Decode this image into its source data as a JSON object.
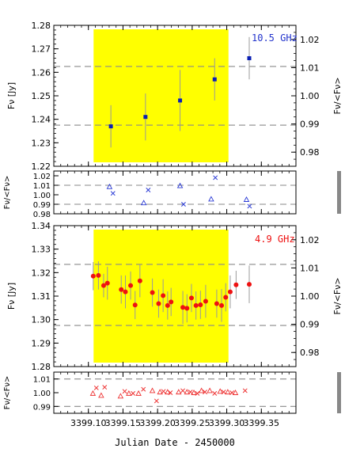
{
  "chart_data": [
    {
      "id": "panel-10ghz",
      "type": "scatter",
      "annotation": "10.5 GHz",
      "ylabel_left": "Fν [Jy]",
      "ylabel_right": "Fν/<Fν>",
      "x": [
        3399.1325,
        3399.1825,
        3399.2325,
        3399.2825,
        3399.3325
      ],
      "y": [
        1.237,
        1.241,
        1.248,
        1.257,
        1.266
      ],
      "yerr": [
        0.009,
        0.01,
        0.013,
        0.009,
        0.009
      ],
      "xlim": [
        3399.05,
        3399.4
      ],
      "ylim": [
        1.22,
        1.28
      ],
      "yticks": [
        "1.22",
        "1.23",
        "1.24",
        "1.25",
        "1.26",
        "1.27",
        "1.28"
      ],
      "ylim_right": [
        0.975,
        1.025
      ],
      "yticks_right": [
        "0.98",
        "0.99",
        "1.00",
        "1.01",
        "1.02"
      ],
      "dashed_levels": [
        1.2375,
        1.2625
      ],
      "highlight_x": [
        3399.1075,
        3399.3025
      ],
      "marker_color": "#0a1fb4",
      "highlight_color": "#ffff00"
    },
    {
      "id": "ratio-10ghz",
      "type": "scatter",
      "ylabel": "Fν/<Fν>",
      "ylim": [
        0.98,
        1.025
      ],
      "yticks": [
        "0.98",
        "0.99",
        "1.00",
        "1.01",
        "1.02"
      ],
      "dashed_levels": [
        0.99,
        1.01
      ],
      "marker_color": "#2b3bd6",
      "triangles": {
        "x": [
          3399.1305,
          3399.18,
          3399.2325,
          3399.2775,
          3399.3285
        ],
        "y": [
          1.0085,
          0.9915,
          1.0095,
          0.9955,
          0.995
        ]
      },
      "crosses": {
        "x": [
          3399.1355,
          3399.1865,
          3399.2375,
          3399.2835,
          3399.333
        ],
        "y": [
          1.0015,
          1.005,
          0.99,
          1.018,
          0.988
        ]
      }
    },
    {
      "id": "panel-4.9ghz",
      "type": "scatter",
      "annotation": "4.9 GHz",
      "ylabel_left": "Fν [Jy]",
      "ylabel_right": "Fν/<Fν>",
      "x": [
        3399.107,
        3399.1145,
        3399.122,
        3399.1275,
        3399.1475,
        3399.1535,
        3399.161,
        3399.1675,
        3399.1745,
        3399.1925,
        3399.2015,
        3399.208,
        3399.2145,
        3399.2195,
        3399.2365,
        3399.2425,
        3399.249,
        3399.2555,
        3399.262,
        3399.2695,
        3399.2855,
        3399.2925,
        3399.2985,
        3399.305,
        3399.3135,
        3399.3325
      ],
      "y": [
        1.3185,
        1.3188,
        1.3145,
        1.3155,
        1.3128,
        1.3118,
        1.3145,
        1.3062,
        1.3165,
        1.3115,
        1.3068,
        1.3102,
        1.306,
        1.3075,
        1.3052,
        1.3048,
        1.3092,
        1.306,
        1.3063,
        1.3078,
        1.3068,
        1.306,
        1.3095,
        1.3118,
        1.3148,
        1.315
      ],
      "yerr": [
        0.006,
        0.006,
        0.005,
        0.007,
        0.006,
        0.007,
        0.006,
        0.006,
        0.007,
        0.006,
        0.006,
        0.007,
        0.006,
        0.006,
        0.007,
        0.006,
        0.006,
        0.006,
        0.006,
        0.007,
        0.006,
        0.007,
        0.006,
        0.007,
        0.006,
        0.008
      ],
      "xlim": [
        3399.05,
        3399.4
      ],
      "ylim": [
        1.28,
        1.34
      ],
      "yticks": [
        "1.28",
        "1.29",
        "1.30",
        "1.31",
        "1.32",
        "1.33",
        "1.34"
      ],
      "ylim_right": [
        0.975,
        1.025
      ],
      "yticks_right": [
        "0.98",
        "0.99",
        "1.00",
        "1.01",
        "1.02"
      ],
      "dashed_levels": [
        1.2975,
        1.3235
      ],
      "highlight_x": [
        3399.1075,
        3399.3025
      ],
      "marker_color": "#ee1111",
      "highlight_color": "#ffff00"
    },
    {
      "id": "ratio-4.9ghz",
      "type": "scatter",
      "ylabel": "Fν/<Fν>",
      "ylim": [
        0.985,
        1.015
      ],
      "yticks": [
        "0.99",
        "1.00",
        "1.01"
      ],
      "dashed_levels": [
        0.99,
        1.01
      ],
      "marker_color": "#ee3333",
      "triangles": {
        "x": [
          3399.1065,
          3399.1185,
          3399.1465,
          3399.1585,
          3399.1725,
          3399.1925,
          3399.2035,
          3399.2145,
          3399.2305,
          3399.2425,
          3399.2525,
          3399.2635,
          3399.2755,
          3399.2905,
          3399.3015,
          3399.3125
        ],
        "y": [
          0.9995,
          0.998,
          0.9975,
          0.9995,
          0.9995,
          1.0015,
          1.0005,
          1.0005,
          1.0005,
          1.0005,
          1.0,
          1.0015,
          1.0015,
          1.001,
          1.0005,
          1.0
        ]
      },
      "crosses": {
        "x": [
          3399.1115,
          3399.1235,
          3399.1525,
          3399.1645,
          3399.1795,
          3399.1985,
          3399.2085,
          3399.2185,
          3399.2365,
          3399.2475,
          3399.2575,
          3399.2685,
          3399.2825,
          3399.2955,
          3399.3075,
          3399.3265
        ],
        "y": [
          1.0035,
          1.004,
          1.001,
          0.9995,
          1.0025,
          0.994,
          1.001,
          1.0,
          1.0015,
          1.0005,
          0.9995,
          1.0005,
          0.9995,
          1.0005,
          1.0,
          1.0015
        ]
      }
    }
  ],
  "xaxis": {
    "ticks": [
      3399.1,
      3399.15,
      3399.2,
      3399.25,
      3399.3,
      3399.35
    ],
    "ticklabels": [
      "3399.10",
      "3399.15",
      "3399.20",
      "3399.25",
      "3399.30",
      "3399.35"
    ],
    "label": "Julian Date - 2450000"
  }
}
